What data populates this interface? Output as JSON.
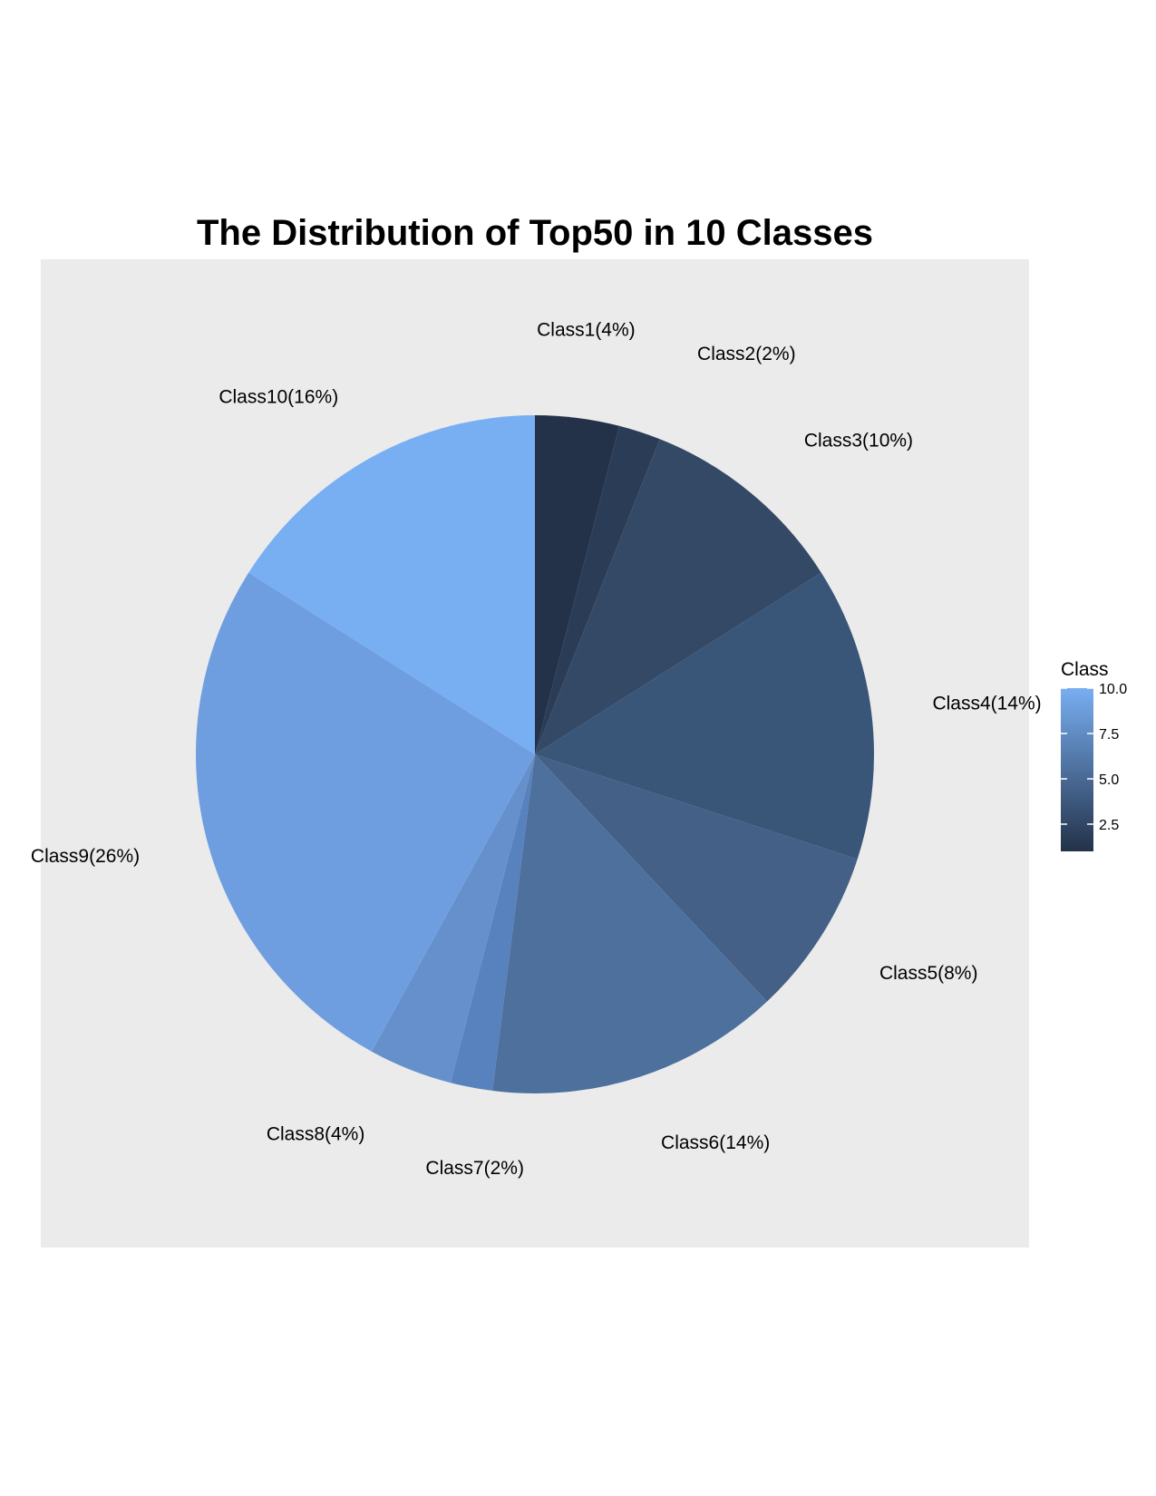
{
  "chart_data": {
    "type": "pie",
    "title": "The Distribution of Top50 in 10 Classes",
    "categories": [
      "Class1",
      "Class2",
      "Class3",
      "Class4",
      "Class5",
      "Class6",
      "Class7",
      "Class8",
      "Class9",
      "Class10"
    ],
    "values": [
      4,
      2,
      10,
      14,
      8,
      14,
      2,
      4,
      26,
      16
    ],
    "labels": [
      "Class1(4%)",
      "Class2(2%)",
      "Class3(10%)",
      "Class4(14%)",
      "Class5(8%)",
      "Class6(14%)",
      "Class7(2%)",
      "Class8(4%)",
      "Class9(26%)",
      "Class10(16%)"
    ],
    "class_index": [
      1,
      2,
      3,
      4,
      5,
      6,
      7,
      8,
      9,
      10
    ],
    "colors": [
      "#233249",
      "#2b3c56",
      "#334965",
      "#395578",
      "#446086",
      "#4e709d",
      "#5882be",
      "#6590cb",
      "#6f9ee0",
      "#78aef2"
    ],
    "direction": "clockwise from top",
    "legend": {
      "title": "Class",
      "placement": "right",
      "type": "colorbar",
      "range": [
        1,
        10
      ],
      "ticks": [
        "2.5",
        "5.0",
        "7.5",
        "10.0"
      ],
      "tick_values": [
        2.5,
        5.0,
        7.5,
        10.0
      ],
      "color_low": "#233249",
      "color_high": "#78aef2"
    },
    "panel_background": "#ebebeb",
    "grid": false
  }
}
